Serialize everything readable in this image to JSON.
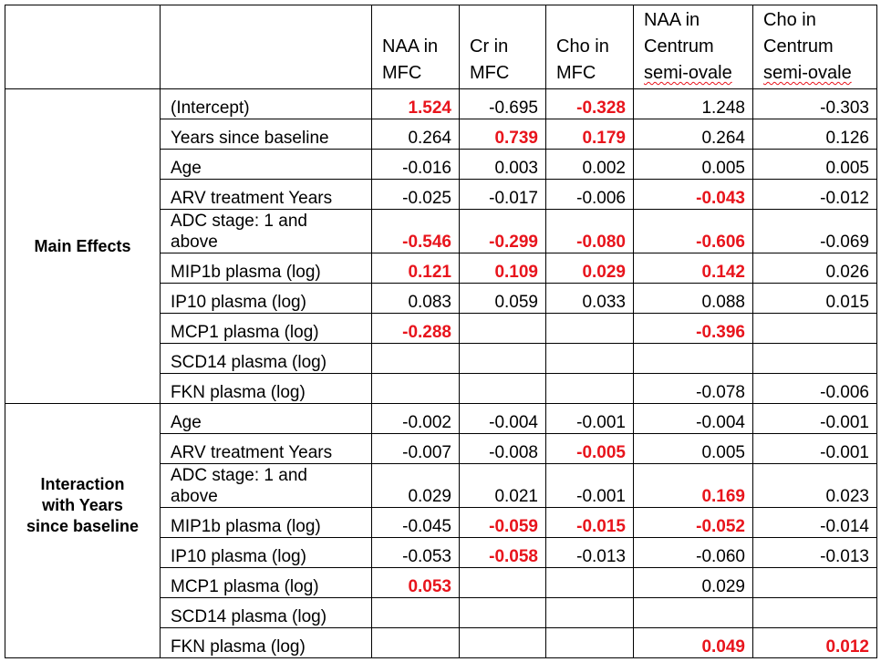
{
  "header": {
    "c1": [
      "NAA in",
      "MFC"
    ],
    "c2": [
      "Cr in",
      "MFC"
    ],
    "c3": [
      "Cho in",
      "MFC"
    ],
    "c4": [
      "NAA in",
      "Centrum",
      "semi-ovale"
    ],
    "c5": [
      "Cho in",
      "Centrum",
      "semi-ovale"
    ]
  },
  "groups": {
    "main": "Main Effects",
    "interaction": [
      "Interaction",
      "with Years",
      "since baseline"
    ]
  },
  "highlight_color": "#e8141c",
  "rows": [
    {
      "label": "(Intercept)",
      "v": [
        [
          "1.524",
          true
        ],
        [
          "-0.695",
          false
        ],
        [
          "-0.328",
          true
        ],
        [
          "1.248",
          false
        ],
        [
          "-0.303",
          false
        ]
      ]
    },
    {
      "label": "Years since baseline",
      "v": [
        [
          "0.264",
          false
        ],
        [
          "0.739",
          true
        ],
        [
          "0.179",
          true
        ],
        [
          "0.264",
          false
        ],
        [
          "0.126",
          false
        ]
      ]
    },
    {
      "label": "Age",
      "v": [
        [
          "-0.016",
          false
        ],
        [
          "0.003",
          false
        ],
        [
          "0.002",
          false
        ],
        [
          "0.005",
          false
        ],
        [
          "0.005",
          false
        ]
      ]
    },
    {
      "label": "ARV treatment Years",
      "v": [
        [
          "-0.025",
          false
        ],
        [
          "-0.017",
          false
        ],
        [
          "-0.006",
          false
        ],
        [
          "-0.043",
          true
        ],
        [
          "-0.012",
          false
        ]
      ]
    },
    {
      "label": [
        "ADC stage: 1 and",
        "above"
      ],
      "v": [
        [
          "-0.546",
          true
        ],
        [
          "-0.299",
          true
        ],
        [
          "-0.080",
          true
        ],
        [
          "-0.606",
          true
        ],
        [
          "-0.069",
          false
        ]
      ]
    },
    {
      "label": "MIP1b plasma (log)",
      "v": [
        [
          "0.121",
          true
        ],
        [
          "0.109",
          true
        ],
        [
          "0.029",
          true
        ],
        [
          "0.142",
          true
        ],
        [
          "0.026",
          false
        ]
      ]
    },
    {
      "label": "IP10 plasma (log)",
      "v": [
        [
          "0.083",
          false
        ],
        [
          "0.059",
          false
        ],
        [
          "0.033",
          false
        ],
        [
          "0.088",
          false
        ],
        [
          "0.015",
          false
        ]
      ]
    },
    {
      "label": "MCP1 plasma (log)",
      "v": [
        [
          "-0.288",
          true
        ],
        [
          "",
          false
        ],
        [
          "",
          false
        ],
        [
          "-0.396",
          true
        ],
        [
          "",
          false
        ]
      ]
    },
    {
      "label": "SCD14 plasma (log)",
      "v": [
        [
          "",
          false
        ],
        [
          "",
          false
        ],
        [
          "",
          false
        ],
        [
          "",
          false
        ],
        [
          "",
          false
        ]
      ]
    },
    {
      "label": "FKN plasma (log)",
      "v": [
        [
          "",
          false
        ],
        [
          "",
          false
        ],
        [
          "",
          false
        ],
        [
          "-0.078",
          false
        ],
        [
          "-0.006",
          false
        ]
      ]
    },
    {
      "label": "Age",
      "v": [
        [
          "-0.002",
          false
        ],
        [
          "-0.004",
          false
        ],
        [
          "-0.001",
          false
        ],
        [
          "-0.004",
          false
        ],
        [
          "-0.001",
          false
        ]
      ]
    },
    {
      "label": "ARV treatment Years",
      "v": [
        [
          "-0.007",
          false
        ],
        [
          "-0.008",
          false
        ],
        [
          "-0.005",
          true
        ],
        [
          "0.005",
          false
        ],
        [
          "-0.001",
          false
        ]
      ]
    },
    {
      "label": [
        "ADC stage: 1 and",
        "above"
      ],
      "v": [
        [
          "0.029",
          false
        ],
        [
          "0.021",
          false
        ],
        [
          "-0.001",
          false
        ],
        [
          "0.169",
          true
        ],
        [
          "0.023",
          false
        ]
      ]
    },
    {
      "label": "MIP1b plasma (log)",
      "v": [
        [
          "-0.045",
          false
        ],
        [
          "-0.059",
          true
        ],
        [
          "-0.015",
          true
        ],
        [
          "-0.052",
          true
        ],
        [
          "-0.014",
          false
        ]
      ]
    },
    {
      "label": "IP10 plasma (log)",
      "v": [
        [
          "-0.053",
          false
        ],
        [
          "-0.058",
          true
        ],
        [
          "-0.013",
          false
        ],
        [
          "-0.060",
          false
        ],
        [
          "-0.013",
          false
        ]
      ]
    },
    {
      "label": "MCP1 plasma (log)",
      "v": [
        [
          "0.053",
          true
        ],
        [
          "",
          false
        ],
        [
          "",
          false
        ],
        [
          "0.029",
          false
        ],
        [
          "",
          false
        ]
      ]
    },
    {
      "label": "SCD14 plasma (log)",
      "v": [
        [
          "",
          false
        ],
        [
          "",
          false
        ],
        [
          "",
          false
        ],
        [
          "",
          false
        ],
        [
          "",
          false
        ]
      ]
    },
    {
      "label": "FKN plasma (log)",
      "v": [
        [
          "",
          false
        ],
        [
          "",
          false
        ],
        [
          "",
          false
        ],
        [
          "0.049",
          true
        ],
        [
          "0.012",
          true
        ]
      ]
    }
  ]
}
